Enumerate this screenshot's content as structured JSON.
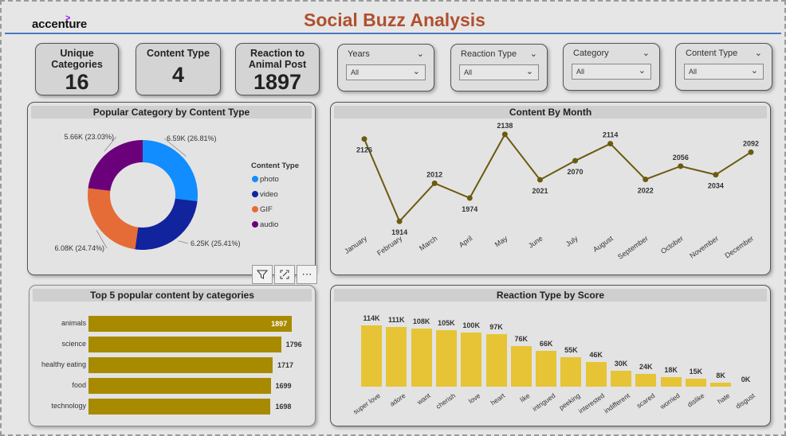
{
  "header": {
    "logo": "accenture",
    "logo_mark": ">",
    "title": "Social Buzz Analysis"
  },
  "kpis": [
    {
      "label": "Unique Categories",
      "value": "16"
    },
    {
      "label": "Content Type",
      "value": "4"
    },
    {
      "label": "Reaction to Animal Post",
      "value": "1897"
    }
  ],
  "slicers": [
    {
      "label": "Years",
      "value": "All"
    },
    {
      "label": "Reaction Type",
      "value": "All"
    },
    {
      "label": "Category",
      "value": "All"
    },
    {
      "label": "Content Type",
      "value": "All"
    }
  ],
  "visual_toolbar": {
    "filter_icon": "filter-icon",
    "focus_icon": "focus-mode-icon",
    "more_icon": "more-options-icon"
  },
  "colors": {
    "title": "#b0502f",
    "accent_line": "#4a7ac4",
    "line": "#6b5a10",
    "hbar": "#a88a00",
    "vbar": "#e6c435"
  },
  "chart_data": [
    {
      "type": "pie",
      "title": "Popular Category by Content Type",
      "legend_title": "Content Type",
      "legend_position": "right",
      "categories": [
        "photo",
        "video",
        "GIF",
        "audio"
      ],
      "values": [
        6.59,
        6.25,
        6.08,
        5.66
      ],
      "labels": [
        "6.59K (26.81%)",
        "6.25K (25.41%)",
        "6.08K (24.74%)",
        "5.66K (23.03%)"
      ],
      "colors": [
        "#118dff",
        "#12239e",
        "#e66c37",
        "#6b007b"
      ]
    },
    {
      "type": "line",
      "title": "Content By Month",
      "x": [
        "January",
        "February",
        "March",
        "April",
        "May",
        "June",
        "July",
        "August",
        "September",
        "October",
        "November",
        "December"
      ],
      "values": [
        2126,
        1914,
        2012,
        1974,
        2138,
        2021,
        2070,
        2114,
        2022,
        2056,
        2034,
        2092
      ],
      "ylim": [
        1900,
        2150
      ]
    },
    {
      "type": "bar",
      "orientation": "horizontal",
      "title": "Top 5 popular content by categories",
      "categories": [
        "animals",
        "science",
        "healthy eating",
        "food",
        "technology"
      ],
      "values": [
        1897,
        1796,
        1717,
        1699,
        1698
      ],
      "xlim": [
        0,
        2000
      ]
    },
    {
      "type": "bar",
      "title": "Reaction Type by Score",
      "categories": [
        "super love",
        "adore",
        "want",
        "cherish",
        "love",
        "heart",
        "like",
        "intrigued",
        "peeking",
        "interested",
        "indifferent",
        "scared",
        "worried",
        "dislike",
        "hate",
        "disgust"
      ],
      "values": [
        114,
        111,
        108,
        105,
        100,
        97,
        76,
        66,
        55,
        46,
        30,
        24,
        18,
        15,
        8,
        0
      ],
      "labels": [
        "114K",
        "111K",
        "108K",
        "105K",
        "100K",
        "97K",
        "76K",
        "66K",
        "55K",
        "46K",
        "30K",
        "24K",
        "18K",
        "15K",
        "8K",
        "0K"
      ],
      "ylim": [
        0,
        120
      ]
    }
  ]
}
